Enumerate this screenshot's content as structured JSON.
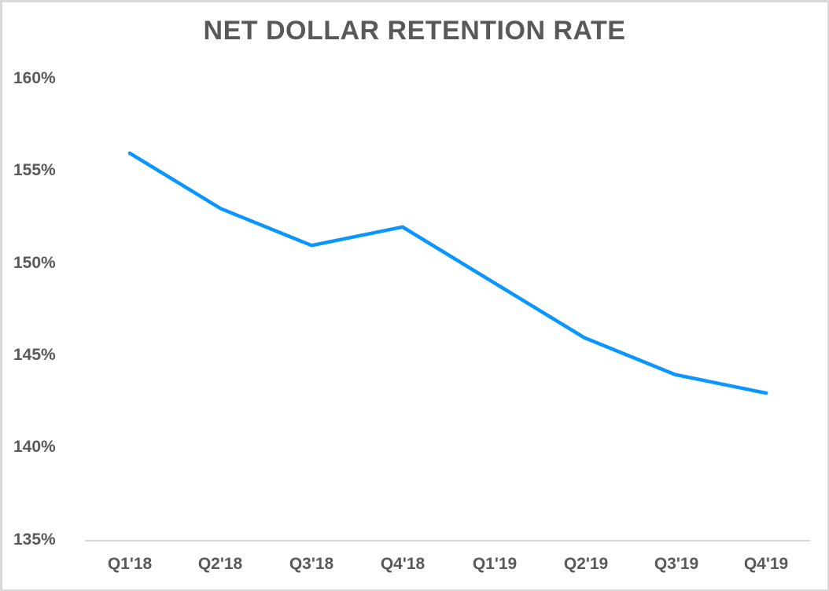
{
  "chart_data": {
    "type": "line",
    "title": "NET DOLLAR RETENTION RATE",
    "xlabel": "",
    "ylabel": "",
    "categories": [
      "Q1'18",
      "Q2'18",
      "Q3'18",
      "Q4'18",
      "Q1'19",
      "Q2'19",
      "Q3'19",
      "Q4'19"
    ],
    "series": [
      {
        "name": "Net Dollar Retention Rate",
        "values": [
          156,
          153,
          151,
          152,
          149,
          146,
          144,
          143
        ],
        "color": "#0a96ff"
      }
    ],
    "y_ticks": [
      "160%",
      "155%",
      "150%",
      "145%",
      "140%",
      "135%"
    ],
    "ylim": [
      135,
      160
    ],
    "grid": false,
    "legend": "none"
  },
  "labels": {
    "title": "NET DOLLAR RETENTION RATE",
    "y_ticks": [
      "160%",
      "155%",
      "150%",
      "145%",
      "140%",
      "135%"
    ],
    "x_ticks": [
      "Q1'18",
      "Q2'18",
      "Q3'18",
      "Q4'18",
      "Q1'19",
      "Q2'19",
      "Q3'19",
      "Q4'19"
    ]
  },
  "colors": {
    "line": "#0a96ff",
    "text": "#595959",
    "axis": "#d9d9d9"
  }
}
